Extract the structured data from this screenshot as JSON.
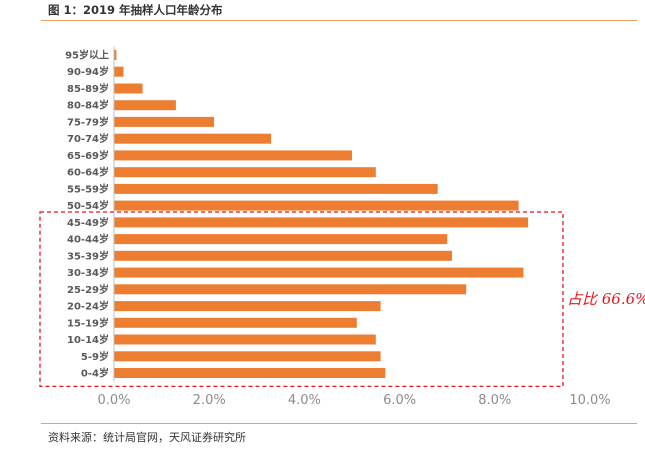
{
  "figure": {
    "title": "图 1：2019 年抽样人口年龄分布",
    "source": "资料来源：统计局官网，天风证券研究所"
  },
  "chart_data": {
    "type": "bar",
    "orientation": "horizontal",
    "title": "",
    "xlabel": "",
    "ylabel": "",
    "xlim": [
      0,
      10
    ],
    "x_ticks": [
      "0.0%",
      "2.0%",
      "4.0%",
      "6.0%",
      "8.0%",
      "10.0%"
    ],
    "categories": [
      "0-4岁",
      "5-9岁",
      "10-14岁",
      "15-19岁",
      "20-24岁",
      "25-29岁",
      "30-34岁",
      "35-39岁",
      "40-44岁",
      "45-49岁",
      "50-54岁",
      "55-59岁",
      "60-64岁",
      "65-69岁",
      "70-74岁",
      "75-79岁",
      "80-84岁",
      "85-89岁",
      "90-94岁",
      "95岁以上"
    ],
    "values": [
      5.7,
      5.6,
      5.5,
      5.1,
      5.6,
      7.4,
      8.6,
      7.1,
      7.0,
      8.7,
      8.5,
      6.8,
      5.5,
      5.0,
      3.3,
      2.1,
      1.3,
      0.6,
      0.2,
      0.05
    ],
    "bar_color": "#ed7d31",
    "grid": false,
    "annotation": {
      "text": "占比 66.6%",
      "bracket_categories": [
        "0-4岁",
        "45-49岁"
      ],
      "color": "#e8151b"
    }
  }
}
